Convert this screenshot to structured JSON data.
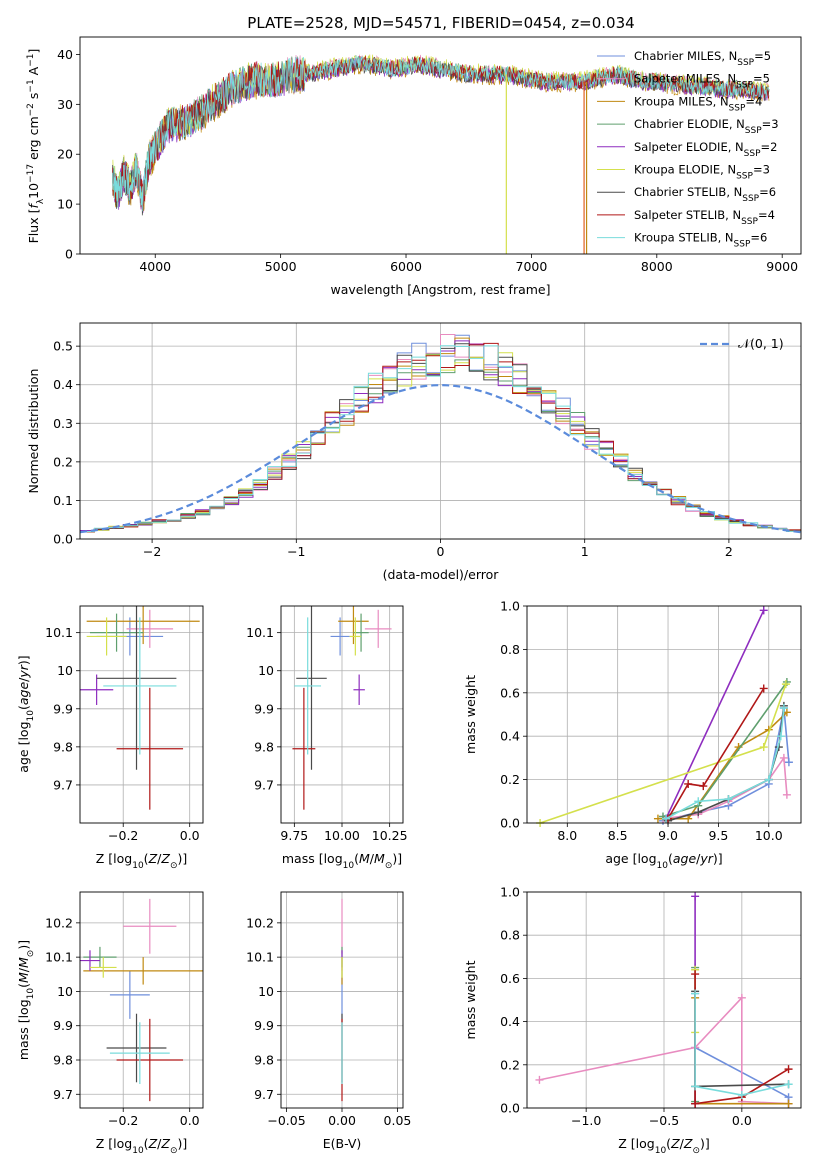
{
  "palette": [
    "#6f8fdc",
    "#e88cc0",
    "#c08a12",
    "#5f9f6e",
    "#8e2dbf",
    "#d4e04c",
    "#4a4a4a",
    "#b01818",
    "#79dcdc"
  ],
  "chart_data": [
    {
      "id": "spectrum",
      "type": "line",
      "title": "PLATE=2528, MJD=54571, FIBERID=0454, z=0.034",
      "xlabel": "wavelength [Angstrom, rest frame]",
      "ylabel": "Flux [f_λ10^-17 erg cm^-2 s^-1 A^-1]",
      "xlim": [
        3400,
        9150
      ],
      "ylim": [
        0,
        43.5
      ],
      "xticks": [
        4000,
        5000,
        6000,
        7000,
        8000,
        9000
      ],
      "yticks": [
        0,
        10,
        20,
        30,
        40
      ],
      "grid": false,
      "legend_position": "top-right",
      "spectrum_x": [
        3660,
        3700,
        3750,
        3800,
        3850,
        3900,
        3950,
        4000,
        4100,
        4200,
        4300,
        4400,
        4500,
        4600,
        4700,
        4800,
        4900,
        5000,
        5100,
        5200,
        5300,
        5400,
        5500,
        5600,
        5700,
        5800,
        5900,
        6000,
        6100,
        6200,
        6300,
        6400,
        6500,
        6600,
        6700,
        6800,
        6900,
        7000,
        7100,
        7200,
        7300,
        7400,
        7500,
        7600,
        7700,
        7800,
        7900,
        8000,
        8100,
        8200,
        8300,
        8400,
        8500,
        8600,
        8700,
        8800,
        8900
      ],
      "spectrum_y": [
        15,
        12,
        16,
        13,
        17,
        11,
        19,
        21,
        26,
        26,
        27,
        29,
        31,
        33,
        34,
        35,
        34.5,
        35,
        36,
        36,
        36.5,
        37,
        37.5,
        38,
        38,
        37.5,
        37,
        37.5,
        38,
        37.5,
        37,
        36.5,
        36,
        36,
        36,
        36,
        35.5,
        35,
        34.5,
        34.5,
        34.5,
        34.5,
        35,
        35.5,
        36,
        35,
        34.5,
        34.5,
        34,
        34,
        33.5,
        33.5,
        33,
        33,
        33,
        32.5,
        32.5
      ],
      "series": [
        {
          "name": "Chabrier MILES, N_SSP=5"
        },
        {
          "name": "Salpeter MILES, N_SSP=5"
        },
        {
          "name": "Kroupa MILES, N_SSP=4"
        },
        {
          "name": "Chabrier ELODIE, N_SSP=3"
        },
        {
          "name": "Salpeter ELODIE, N_SSP=2"
        },
        {
          "name": "Kroupa ELODIE, N_SSP=3"
        },
        {
          "name": "Chabrier STELIB, N_SSP=6"
        },
        {
          "name": "Salpeter STELIB, N_SSP=4"
        },
        {
          "name": "Kroupa STELIB, N_SSP=6"
        }
      ]
    },
    {
      "id": "residuals",
      "type": "bar",
      "xlabel": "(data-model)/error",
      "ylabel": "Normed distribution",
      "xlim": [
        -2.5,
        2.5
      ],
      "ylim": [
        0,
        0.56
      ],
      "xticks": [
        -2,
        -1,
        0,
        1,
        2
      ],
      "yticks": [
        0.0,
        0.1,
        0.2,
        0.3,
        0.4,
        0.5
      ],
      "grid": true,
      "legend": [
        "N(0, 1)"
      ],
      "legend_position": "top-right",
      "bin_edges": [
        -2.5,
        -2.4,
        -2.3,
        -2.2,
        -2.1,
        -2.0,
        -1.9,
        -1.8,
        -1.7,
        -1.6,
        -1.5,
        -1.4,
        -1.3,
        -1.2,
        -1.1,
        -1.0,
        -0.9,
        -0.8,
        -0.7,
        -0.6,
        -0.5,
        -0.4,
        -0.3,
        -0.2,
        -0.1,
        0.0,
        0.1,
        0.2,
        0.3,
        0.4,
        0.5,
        0.6,
        0.7,
        0.8,
        0.9,
        1.0,
        1.1,
        1.2,
        1.3,
        1.4,
        1.5,
        1.6,
        1.7,
        1.8,
        1.9,
        2.0,
        2.1,
        2.2,
        2.3,
        2.4,
        2.5
      ],
      "hist_values": [
        0.02,
        0.025,
        0.03,
        0.035,
        0.04,
        0.045,
        0.05,
        0.06,
        0.07,
        0.08,
        0.1,
        0.12,
        0.14,
        0.17,
        0.2,
        0.23,
        0.27,
        0.3,
        0.33,
        0.36,
        0.39,
        0.42,
        0.44,
        0.46,
        0.47,
        0.48,
        0.48,
        0.47,
        0.46,
        0.44,
        0.42,
        0.39,
        0.36,
        0.33,
        0.3,
        0.26,
        0.23,
        0.2,
        0.17,
        0.14,
        0.12,
        0.1,
        0.08,
        0.065,
        0.055,
        0.045,
        0.038,
        0.032,
        0.027,
        0.022
      ],
      "gaussian": {
        "mean": 0,
        "sigma": 1
      }
    },
    {
      "id": "age-vs-Z",
      "type": "scatter",
      "xlabel": "Z [log10(Z/Z⊙)]",
      "ylabel": "age  [log10(age/yr)]",
      "xlim": [
        -0.33,
        0.04
      ],
      "ylim": [
        9.6,
        10.17
      ],
      "xticks": [
        -0.2,
        0.0
      ],
      "xticklabels": [
        "−0.2",
        "0.0"
      ],
      "yticks": [
        9.7,
        9.8,
        9.9,
        10.0,
        10.1
      ],
      "grid": true,
      "points": [
        {
          "x": -0.18,
          "y": 10.09,
          "xerr": 0.1,
          "yerr": 0.05
        },
        {
          "x": -0.12,
          "y": 10.11,
          "xerr": 0.07,
          "yerr": 0.05
        },
        {
          "x": -0.14,
          "y": 10.13,
          "xerr": 0.17,
          "yerr": 0.06
        },
        {
          "x": -0.22,
          "y": 10.1,
          "xerr": 0.08,
          "yerr": 0.05
        },
        {
          "x": -0.28,
          "y": 9.95,
          "xerr": 0.05,
          "yerr": 0.04
        },
        {
          "x": -0.25,
          "y": 10.09,
          "xerr": 0.06,
          "yerr": 0.05
        },
        {
          "x": -0.16,
          "y": 9.98,
          "xerr": 0.12,
          "yerr": 0.24
        },
        {
          "x": -0.12,
          "y": 9.795,
          "xerr": 0.1,
          "yerr": 0.16
        },
        {
          "x": -0.15,
          "y": 9.96,
          "xerr": 0.11,
          "yerr": 0.18
        }
      ]
    },
    {
      "id": "age-vs-mass",
      "type": "scatter",
      "xlabel": "mass [log10(M/M⊙)]",
      "xlim": [
        9.68,
        10.32
      ],
      "ylim": [
        9.6,
        10.17
      ],
      "xticks": [
        9.75,
        10.0,
        10.25
      ],
      "xticklabels": [
        "9.75",
        "10.00",
        "10.25"
      ],
      "yticks": [
        9.7,
        9.8,
        9.9,
        10.0,
        10.1
      ],
      "grid": true,
      "points": [
        {
          "x": 9.99,
          "y": 10.09,
          "xerr": 0.05,
          "yerr": 0.05
        },
        {
          "x": 10.19,
          "y": 10.11,
          "xerr": 0.07,
          "yerr": 0.05
        },
        {
          "x": 10.06,
          "y": 10.13,
          "xerr": 0.08,
          "yerr": 0.06
        },
        {
          "x": 10.1,
          "y": 10.1,
          "xerr": 0.04,
          "yerr": 0.05
        },
        {
          "x": 10.09,
          "y": 9.95,
          "xerr": 0.03,
          "yerr": 0.04
        },
        {
          "x": 10.07,
          "y": 10.09,
          "xerr": 0.03,
          "yerr": 0.05
        },
        {
          "x": 9.84,
          "y": 9.98,
          "xerr": 0.08,
          "yerr": 0.24
        },
        {
          "x": 9.8,
          "y": 9.795,
          "xerr": 0.06,
          "yerr": 0.16
        },
        {
          "x": 9.82,
          "y": 9.96,
          "xerr": 0.07,
          "yerr": 0.18
        }
      ]
    },
    {
      "id": "weight-vs-age",
      "type": "line",
      "xlabel": "age  [log10(age/yr)]",
      "ylabel": "mass weight",
      "xlim": [
        7.6,
        10.32
      ],
      "ylim": [
        0,
        1.0
      ],
      "xticks": [
        8.0,
        8.5,
        9.0,
        9.5,
        10.0
      ],
      "xticklabels": [
        "8.0",
        "8.5",
        "9.0",
        "9.5",
        "10.0"
      ],
      "yticks": [
        0.0,
        0.2,
        0.4,
        0.6,
        0.8,
        1.0
      ],
      "grid": true,
      "series": [
        {
          "x": [
            8.95,
            9.3,
            9.6,
            10.0,
            10.15,
            10.2
          ],
          "y": [
            0.01,
            0.05,
            0.08,
            0.18,
            0.53,
            0.28
          ]
        },
        {
          "x": [
            8.95,
            9.3,
            9.6,
            10.0,
            10.15,
            10.18
          ],
          "y": [
            0.02,
            0.04,
            0.1,
            0.2,
            0.3,
            0.13
          ]
        },
        {
          "x": [
            8.9,
            9.2,
            9.7,
            10.0,
            10.18
          ],
          "y": [
            0.02,
            0.02,
            0.35,
            0.43,
            0.51
          ]
        },
        {
          "x": [
            8.95,
            9.3,
            10.18
          ],
          "y": [
            0.03,
            0.08,
            0.65
          ]
        },
        {
          "x": [
            8.98,
            9.95
          ],
          "y": [
            0.02,
            0.98
          ]
        },
        {
          "x": [
            7.73,
            9.95,
            10.17
          ],
          "y": [
            0.0,
            0.35,
            0.64
          ]
        },
        {
          "x": [
            9.0,
            9.3,
            9.6,
            10.0,
            10.1,
            10.15
          ],
          "y": [
            0.01,
            0.05,
            0.11,
            0.2,
            0.35,
            0.54
          ]
        },
        {
          "x": [
            9.0,
            9.2,
            9.35,
            9.95
          ],
          "y": [
            0.02,
            0.18,
            0.17,
            0.62
          ]
        },
        {
          "x": [
            8.98,
            9.3,
            9.6,
            10.0,
            10.12,
            10.15
          ],
          "y": [
            0.02,
            0.1,
            0.11,
            0.2,
            0.4,
            0.53
          ]
        }
      ]
    },
    {
      "id": "mass-vs-Z",
      "type": "scatter",
      "xlabel": "Z [log10(Z/Z⊙)]",
      "ylabel": "mass [log10(M/M⊙)]",
      "xlim": [
        -0.33,
        0.04
      ],
      "ylim": [
        9.66,
        10.29
      ],
      "xticks": [
        -0.2,
        0.0
      ],
      "xticklabels": [
        "−0.2",
        "0.0"
      ],
      "yticks": [
        9.7,
        9.8,
        9.9,
        10.0,
        10.1,
        10.2
      ],
      "grid": true,
      "points": [
        {
          "x": -0.18,
          "y": 9.99,
          "xerr": 0.06,
          "yerr": 0.07
        },
        {
          "x": -0.12,
          "y": 10.19,
          "xerr": 0.08,
          "yerr": 0.08
        },
        {
          "x": -0.14,
          "y": 10.06,
          "xerr": 0.18,
          "yerr": 0.04
        },
        {
          "x": -0.27,
          "y": 10.1,
          "xerr": 0.05,
          "yerr": 0.03
        },
        {
          "x": -0.3,
          "y": 10.09,
          "xerr": 0.03,
          "yerr": 0.03
        },
        {
          "x": -0.26,
          "y": 10.07,
          "xerr": 0.04,
          "yerr": 0.03
        },
        {
          "x": -0.16,
          "y": 9.835,
          "xerr": 0.09,
          "yerr": 0.1
        },
        {
          "x": -0.12,
          "y": 9.8,
          "xerr": 0.1,
          "yerr": 0.12
        },
        {
          "x": -0.15,
          "y": 9.82,
          "xerr": 0.09,
          "yerr": 0.09
        }
      ]
    },
    {
      "id": "ebv",
      "type": "scatter",
      "xlabel": "E(B-V)",
      "xlim": [
        -0.055,
        0.055
      ],
      "ylim": [
        9.66,
        10.29
      ],
      "xticks": [
        -0.05,
        0.0,
        0.05
      ],
      "xticklabels": [
        "−0.05",
        "0.00",
        "0.05"
      ],
      "yticks": [
        9.7,
        9.8,
        9.9,
        10.0,
        10.1,
        10.2
      ],
      "grid": true,
      "points": [
        {
          "x": 0.0,
          "y": 9.99,
          "yerr": 0.07
        },
        {
          "x": 0.0,
          "y": 10.19,
          "yerr": 0.08
        },
        {
          "x": 0.0,
          "y": 10.06,
          "yerr": 0.04
        },
        {
          "x": 0.0,
          "y": 10.1,
          "yerr": 0.03
        },
        {
          "x": 0.0,
          "y": 10.09,
          "yerr": 0.03
        },
        {
          "x": 0.0,
          "y": 10.07,
          "yerr": 0.03
        },
        {
          "x": 0.0,
          "y": 9.835,
          "yerr": 0.1
        },
        {
          "x": 0.0,
          "y": 9.8,
          "yerr": 0.12
        },
        {
          "x": 0.0,
          "y": 9.82,
          "yerr": 0.09
        }
      ]
    },
    {
      "id": "weight-vs-Z",
      "type": "line",
      "xlabel": "Z [log10(Z/Z⊙)]",
      "ylabel": "mass weight",
      "xlim": [
        -1.38,
        0.38
      ],
      "ylim": [
        0,
        1.0
      ],
      "xticks": [
        -1.0,
        -0.5,
        0.0
      ],
      "xticklabels": [
        "−1.0",
        "−0.5",
        "0.0"
      ],
      "yticks": [
        0.0,
        0.2,
        0.4,
        0.6,
        0.8,
        1.0
      ],
      "grid": true,
      "series": [
        {
          "x": [
            -0.3,
            -0.3,
            0.3,
            0.3
          ],
          "y": [
            0.53,
            0.28,
            0.05,
            0.02
          ]
        },
        {
          "x": [
            -1.3,
            -0.3,
            0.0,
            0.0,
            0.3
          ],
          "y": [
            0.13,
            0.28,
            0.51,
            0.03,
            0.02
          ]
        },
        {
          "x": [
            -0.3,
            -0.3,
            0.3
          ],
          "y": [
            0.51,
            0.02,
            0.02
          ]
        },
        {
          "x": [
            -0.3,
            -0.3
          ],
          "y": [
            0.65,
            0.03
          ]
        },
        {
          "x": [
            -0.3,
            -0.3
          ],
          "y": [
            0.98,
            0.02
          ]
        },
        {
          "x": [
            -0.3,
            -0.3
          ],
          "y": [
            0.64,
            0.35
          ]
        },
        {
          "x": [
            -0.3,
            -0.3,
            0.3
          ],
          "y": [
            0.54,
            0.1,
            0.11
          ]
        },
        {
          "x": [
            -0.3,
            -0.3,
            0.0,
            0.3
          ],
          "y": [
            0.62,
            0.02,
            0.05,
            0.18
          ]
        },
        {
          "x": [
            -0.3,
            -0.3,
            0.0,
            0.3
          ],
          "y": [
            0.53,
            0.1,
            0.06,
            0.11
          ]
        }
      ]
    }
  ]
}
